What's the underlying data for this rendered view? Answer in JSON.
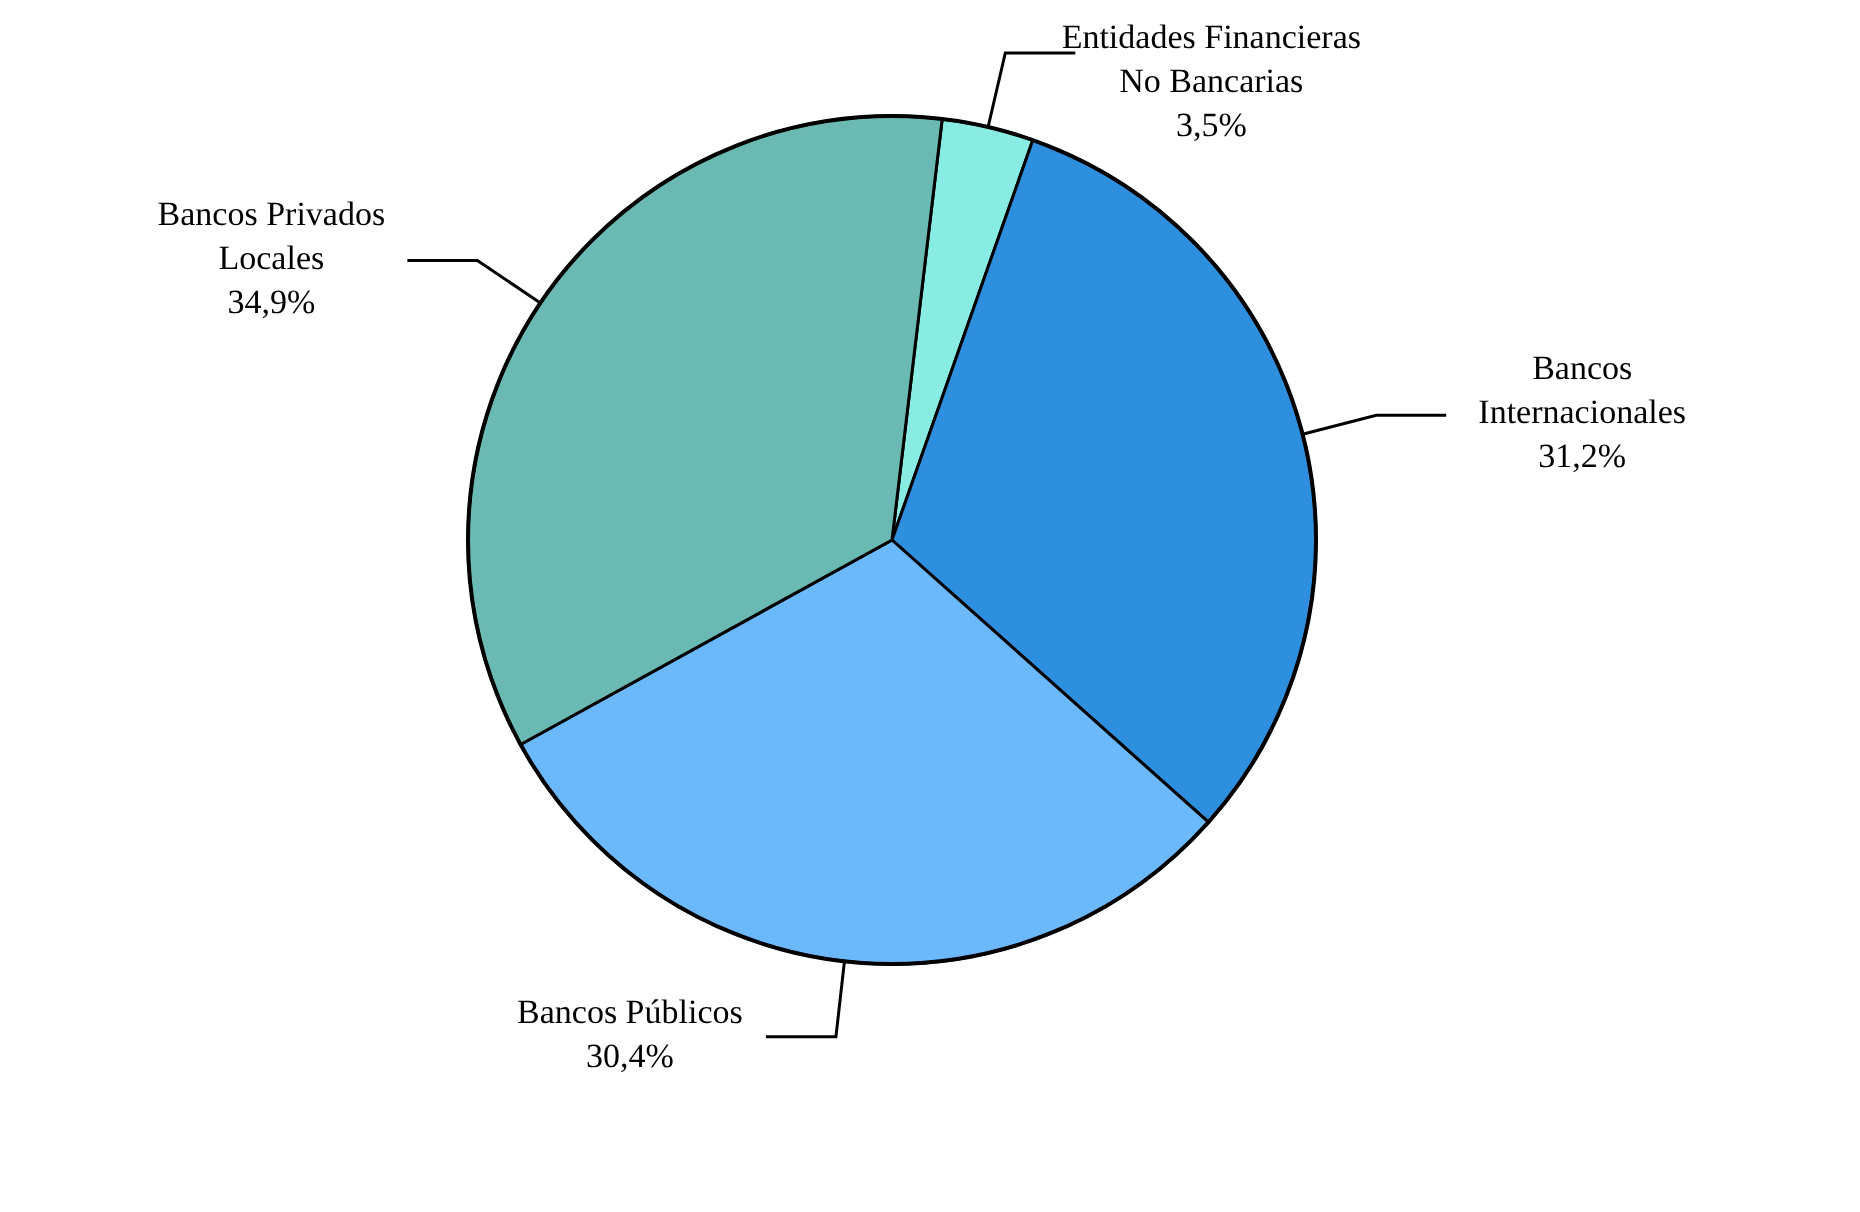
{
  "chart_data": {
    "type": "pie",
    "categories": [
      "Entidades Financieras No Bancarias",
      "Bancos Internacionales",
      "Bancos Públicos",
      "Bancos Privados Locales"
    ],
    "values": [
      3.5,
      31.2,
      30.4,
      34.9
    ],
    "colors": [
      "#88ece3",
      "#2e8fdf",
      "#6bb8fb",
      "#6bb9b3"
    ],
    "value_labels": [
      "3,5%",
      "31,2%",
      "30,4%",
      "34,9%"
    ]
  }
}
